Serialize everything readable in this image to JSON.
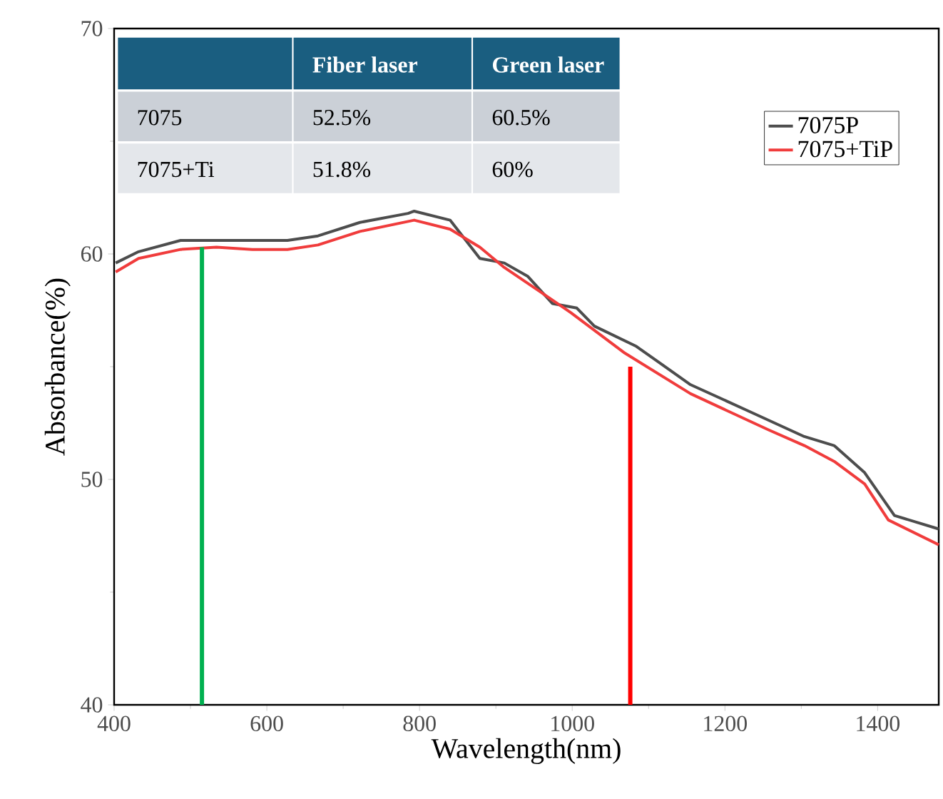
{
  "chart_data": {
    "type": "line",
    "xlabel": "Wavelength(nm)",
    "ylabel": "Absorbance(%)",
    "xlim": [
      400,
      1480
    ],
    "ylim": [
      40,
      70
    ],
    "xticks": [
      400,
      600,
      800,
      1000,
      1200,
      1400
    ],
    "yticks": [
      40,
      50,
      60,
      70
    ],
    "legend": "top right",
    "grid": false,
    "marker": "none",
    "line_style": "solid",
    "annotations": [
      "Fiber laser",
      "Green laser",
      "7075",
      "52.5%",
      "60.5%",
      "7075+Ti",
      "51.8%",
      "60%"
    ],
    "series": [
      {
        "name": "7075P",
        "color": "#4d4d4d",
        "x": [
          402,
          432,
          487,
          534,
          627,
          667,
          722,
          785,
          793,
          840,
          879,
          911,
          942,
          974,
          1006,
          1029,
          1084,
          1155,
          1233,
          1304,
          1343,
          1383,
          1422,
          1480
        ],
        "values": [
          59.6,
          60.1,
          60.6,
          60.6,
          60.6,
          60.8,
          61.4,
          61.8,
          61.9,
          61.5,
          59.8,
          59.6,
          59.0,
          57.8,
          57.6,
          56.8,
          55.9,
          54.2,
          53.0,
          51.9,
          51.5,
          50.3,
          48.4,
          47.8
        ]
      },
      {
        "name": "7075+TiP",
        "color": "#f03c3c",
        "x": [
          402,
          432,
          487,
          534,
          581,
          627,
          667,
          722,
          793,
          840,
          879,
          911,
          959,
          998,
          1069,
          1155,
          1257,
          1304,
          1343,
          1383,
          1414,
          1480
        ],
        "values": [
          59.2,
          59.8,
          60.2,
          60.3,
          60.2,
          60.2,
          60.4,
          61.0,
          61.5,
          61.1,
          60.3,
          59.4,
          58.3,
          57.4,
          55.6,
          53.8,
          52.2,
          51.5,
          50.8,
          49.8,
          48.2,
          47.1
        ]
      },
      {
        "color": "#00b050",
        "x": [
          515,
          515
        ],
        "values": [
          40,
          60.3
        ]
      },
      {
        "color": "#ff0000",
        "x": [
          1076,
          1076
        ],
        "values": [
          40,
          55.0
        ]
      }
    ]
  }
}
